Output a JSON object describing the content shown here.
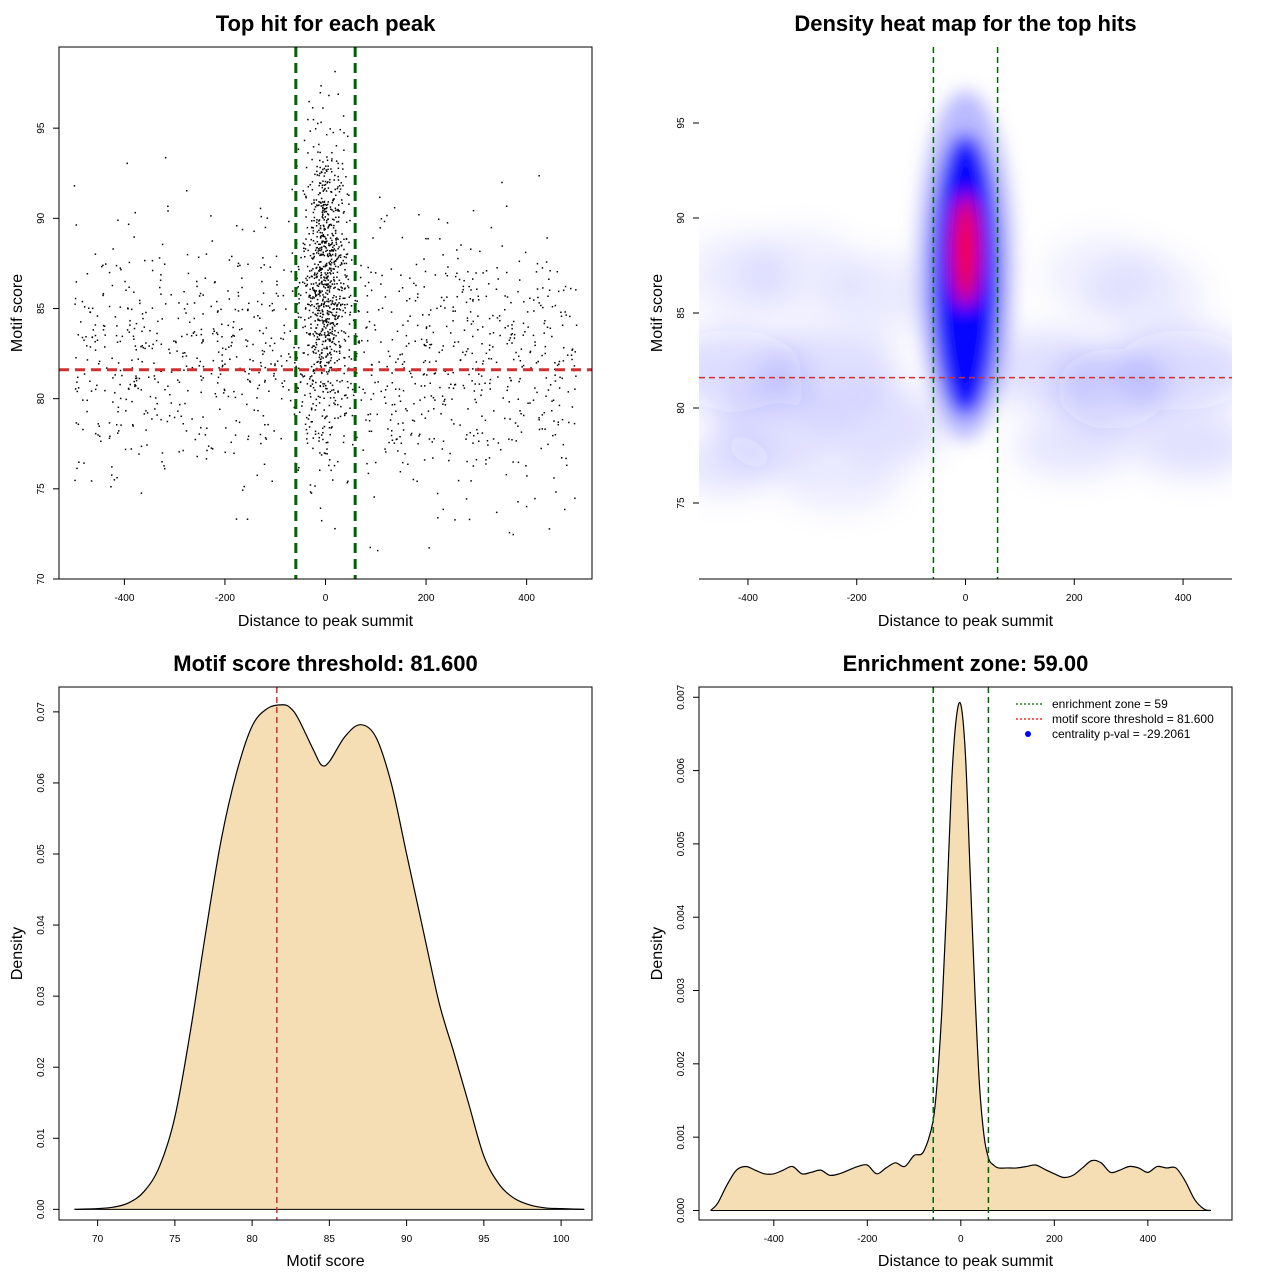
{
  "chart_data": [
    {
      "type": "scatter",
      "title": "Top hit for each peak",
      "xlabel": "Distance to peak summit",
      "ylabel": "Motif score",
      "xlim": [
        -530,
        530
      ],
      "ylim": [
        70,
        99.5
      ],
      "xticks": [
        -400,
        -200,
        0,
        200,
        400
      ],
      "yticks": [
        70,
        75,
        80,
        85,
        90,
        95
      ],
      "point_color": "#000000",
      "enrichment_zone": [
        -59,
        59
      ],
      "threshold": 81.6,
      "point_cloud": {
        "count_background": 1200,
        "count_center": 900,
        "background_x_range": [
          -500,
          500
        ],
        "center_x_range": [
          -59,
          59
        ],
        "background_score_mean": 82,
        "center_score_mean": 86.5
      }
    },
    {
      "type": "heatmap",
      "title": "Density heat map for the top hits",
      "xlabel": "Distance to peak summit",
      "ylabel": "Motif score",
      "xlim": [
        -490,
        490
      ],
      "ylim": [
        71,
        99
      ],
      "xticks": [
        -400,
        -200,
        0,
        200,
        400
      ],
      "yticks": [
        75,
        80,
        85,
        90,
        95
      ],
      "colors": [
        "#ffffff",
        "#0000ff",
        "#ff0000"
      ],
      "peak": {
        "x": 0,
        "y": 88
      },
      "enrichment_zone": [
        -59,
        59
      ],
      "threshold": 81.6
    },
    {
      "type": "area",
      "title": "Motif score threshold: 81.600",
      "xlabel": "Motif score",
      "ylabel": "Density",
      "xlim": [
        67.5,
        102
      ],
      "ylim": [
        -0.0015,
        0.0735
      ],
      "xticks": [
        70,
        75,
        80,
        85,
        90,
        95,
        100
      ],
      "yticks": [
        0.0,
        0.01,
        0.02,
        0.03,
        0.04,
        0.05,
        0.06,
        0.07
      ],
      "ytick_labels": [
        "0.00",
        "0.01",
        "0.02",
        "0.03",
        "0.04",
        "0.05",
        "0.06",
        "0.07"
      ],
      "fill_color": "#f5deb3",
      "threshold": 81.6,
      "x": [
        68.5,
        70,
        71,
        72,
        73,
        74,
        75,
        76,
        77,
        78,
        79,
        80,
        81,
        82,
        82.5,
        83,
        84,
        84.5,
        85,
        86,
        87,
        88,
        89,
        90,
        91,
        92,
        92.5,
        93,
        94,
        95,
        96,
        97,
        98,
        99,
        100,
        101.5
      ],
      "y": [
        0.0,
        0.0001,
        0.0003,
        0.0009,
        0.0025,
        0.006,
        0.013,
        0.025,
        0.039,
        0.052,
        0.0615,
        0.068,
        0.0705,
        0.071,
        0.0705,
        0.069,
        0.0645,
        0.0625,
        0.063,
        0.0665,
        0.0682,
        0.0665,
        0.06,
        0.05,
        0.04,
        0.03,
        0.026,
        0.0225,
        0.015,
        0.0075,
        0.0035,
        0.0015,
        0.0006,
        0.0002,
        0.0001,
        0.0
      ]
    },
    {
      "type": "area",
      "title": "Enrichment zone: 59.00",
      "xlabel": "Distance to peak summit",
      "ylabel": "Density",
      "xlim": [
        -560,
        580
      ],
      "ylim": [
        -0.00013,
        0.00714
      ],
      "xticks": [
        -400,
        -200,
        0,
        200,
        400
      ],
      "yticks": [
        0.0,
        0.001,
        0.002,
        0.003,
        0.004,
        0.005,
        0.006,
        0.007
      ],
      "ytick_labels": [
        "0.000",
        "0.001",
        "0.002",
        "0.003",
        "0.004",
        "0.005",
        "0.006",
        "0.007"
      ],
      "fill_color": "#f5deb3",
      "enrichment_zone": [
        -59,
        59
      ],
      "x": [
        -535,
        -520,
        -500,
        -480,
        -460,
        -440,
        -420,
        -400,
        -380,
        -360,
        -340,
        -320,
        -300,
        -280,
        -260,
        -240,
        -220,
        -200,
        -180,
        -160,
        -140,
        -120,
        -100,
        -80,
        -60,
        -50,
        -40,
        -30,
        -20,
        -10,
        0,
        10,
        20,
        30,
        40,
        50,
        60,
        70,
        80,
        100,
        120,
        140,
        160,
        180,
        200,
        220,
        240,
        260,
        280,
        300,
        320,
        340,
        360,
        380,
        400,
        420,
        440,
        460,
        480,
        500,
        520,
        535
      ],
      "y": [
        0.0,
        0.0001,
        0.00035,
        0.00055,
        0.0006,
        0.00055,
        0.0005,
        0.0005,
        0.00055,
        0.0006,
        0.0005,
        0.00052,
        0.00055,
        0.00048,
        0.0005,
        0.00055,
        0.0006,
        0.00062,
        0.0005,
        0.00058,
        0.00065,
        0.0006,
        0.00075,
        0.0008,
        0.0012,
        0.0018,
        0.0028,
        0.0042,
        0.0058,
        0.0067,
        0.0069,
        0.0062,
        0.0046,
        0.003,
        0.0017,
        0.001,
        0.0007,
        0.00062,
        0.00058,
        0.00058,
        0.00058,
        0.0006,
        0.00062,
        0.00056,
        0.0005,
        0.00045,
        0.00048,
        0.00058,
        0.00068,
        0.00065,
        0.00052,
        0.00055,
        0.0006,
        0.00058,
        0.00052,
        0.0006,
        0.00058,
        0.00058,
        0.0004,
        0.00015,
        2e-05,
        0.0
      ],
      "legend": {
        "position": "top-right",
        "entries": [
          {
            "label": "enrichment zone = 59",
            "color": "#006400",
            "style": "dotted-line"
          },
          {
            "label": "motif score threshold = 81.600",
            "color": "#ff0000",
            "style": "dotted-line"
          },
          {
            "label": "centrality p-val = -29.2061",
            "color": "#0000ff",
            "style": "point"
          }
        ]
      }
    }
  ]
}
